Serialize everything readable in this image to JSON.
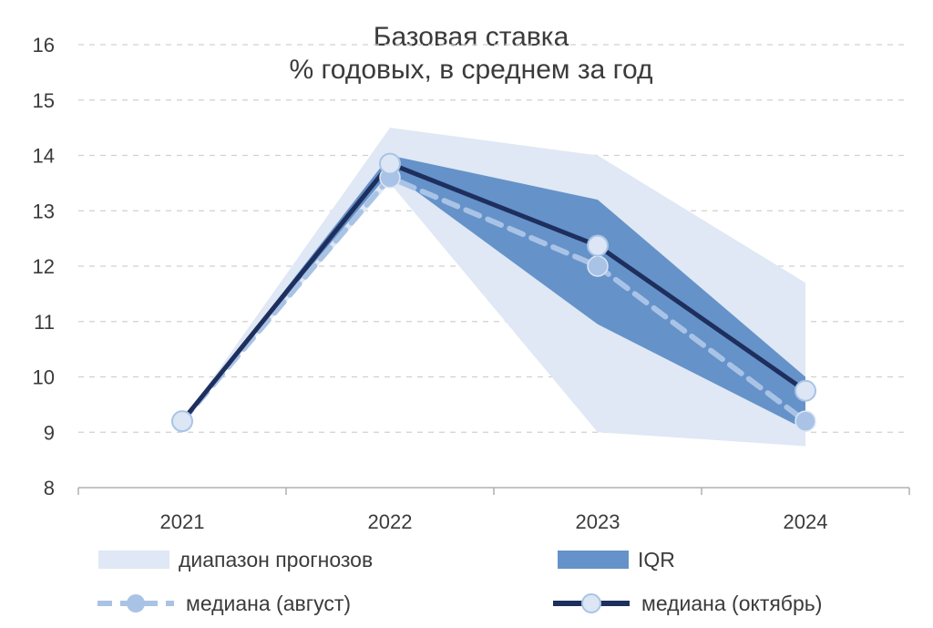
{
  "colors": {
    "range_fill": "#dfe8f4",
    "iqr_fill": "#6592c9",
    "median_august": "#a9c3e6",
    "median_october": "#1e2f5e",
    "marker_fill": "#dce6f5",
    "grid": "#d0d0d0",
    "axis": "#b0b0b0"
  },
  "chart_data": {
    "type": "line",
    "title": "Базовая ставка",
    "subtitle": "% годовых, в среднем за год",
    "categories": [
      "2021",
      "2022",
      "2023",
      "2024"
    ],
    "y_ticks": [
      "8",
      "9",
      "10",
      "11",
      "12",
      "13",
      "14",
      "15",
      "16"
    ],
    "ylim": [
      8,
      16
    ],
    "grid": true,
    "grid_style": "dashed",
    "legend_position": "bottom",
    "bands": [
      {
        "name": "диапазон прогнозов",
        "lower": [
          9.2,
          13.5,
          9.0,
          8.75
        ],
        "upper": [
          9.2,
          14.5,
          14.0,
          11.7
        ]
      },
      {
        "name": "IQR",
        "lower": [
          9.2,
          13.7,
          10.95,
          9.05
        ],
        "upper": [
          9.2,
          14.0,
          13.2,
          10.0
        ]
      }
    ],
    "series": [
      {
        "name": "медиана (август)",
        "values": [
          9.2,
          13.6,
          12.0,
          9.2
        ],
        "style": "dashed"
      },
      {
        "name": "медиана (октябрь)",
        "values": [
          9.2,
          13.85,
          12.37,
          9.75
        ],
        "style": "solid"
      }
    ]
  }
}
